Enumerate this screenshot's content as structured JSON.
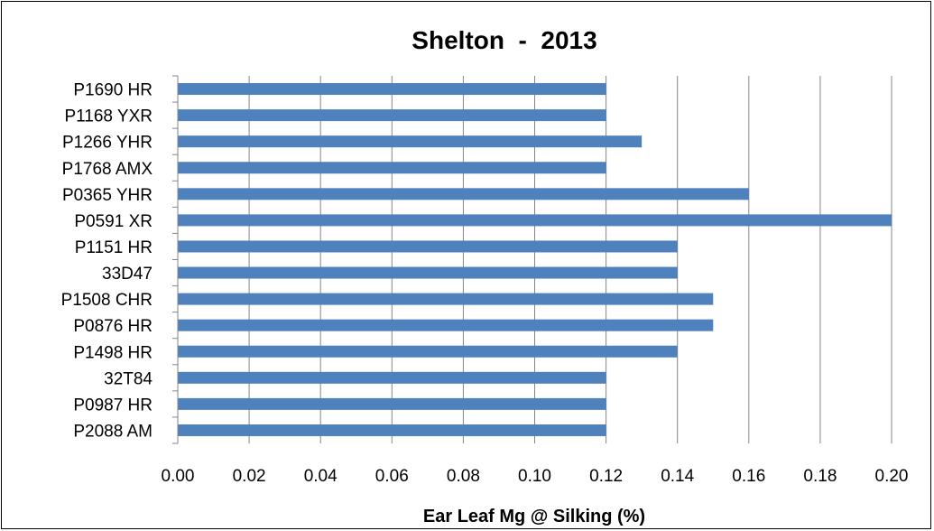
{
  "chart_data": {
    "type": "bar",
    "orientation": "horizontal",
    "title": "Shelton  -  2013",
    "xlabel": "Ear Leaf Mg @ Silking (%)",
    "ylabel": "",
    "categories": [
      "P1690 HR",
      "P1168 YXR",
      "P1266 YHR",
      "P1768 AMX",
      "P0365 YHR",
      "P0591 XR",
      "P1151 HR",
      "33D47",
      "P1508 CHR",
      "P0876 HR",
      "P1498 HR",
      "32T84",
      "P0987 HR",
      "P2088 AM"
    ],
    "values": [
      0.12,
      0.12,
      0.13,
      0.12,
      0.16,
      0.2,
      0.14,
      0.14,
      0.15,
      0.15,
      0.14,
      0.12,
      0.12,
      0.12
    ],
    "xlim": [
      0,
      0.2
    ],
    "x_ticks": [
      "0.00",
      "0.02",
      "0.04",
      "0.06",
      "0.08",
      "0.10",
      "0.12",
      "0.14",
      "0.16",
      "0.18",
      "0.20"
    ],
    "grid": "vertical",
    "legend": "none",
    "bar_color": "#4F81BD",
    "grid_color": "#868686"
  }
}
